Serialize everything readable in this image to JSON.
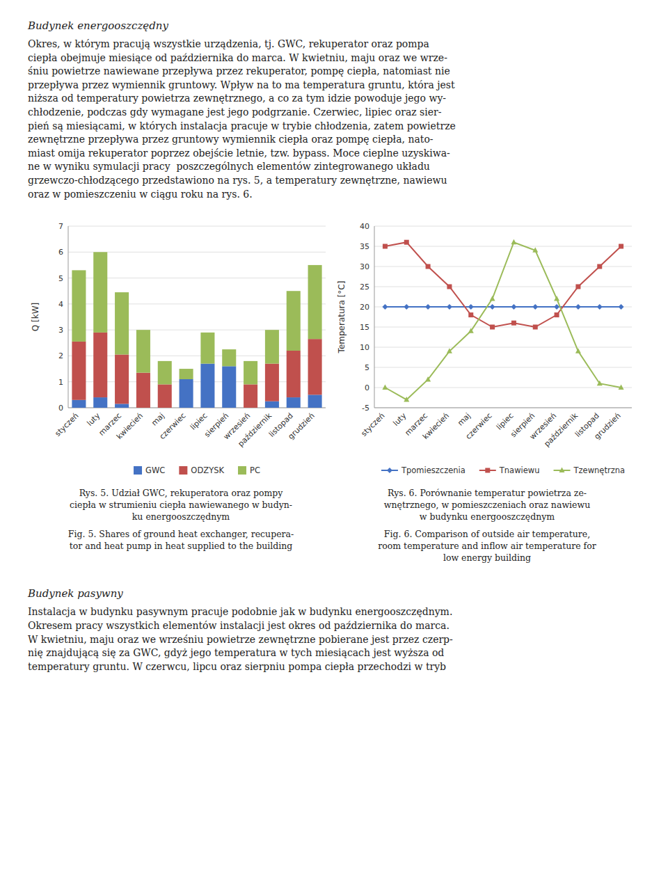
{
  "page_text": {
    "title_text": "Budynek energooszczędny",
    "paragraph1": "Okres, w którym pracują wszystkie urządzenia, tj. GWC, rekuperator oraz pompa\nciepła obejmuje miesiące od października do marca. W kwietniu, maju oraz we wrze-\nśniu powietrze nawiewane przepływa przez rekuperator, pompę ciepła, natomiast nie\nprzepływa przez wymiennik gruntowy. Wpływ na to ma temperatura gruntu, która jest\nniższa od temperatury powietrza zewnętrznego, a co za tym idzie powoduje jego wy-\nchłodzenie, podczas gdy wymagane jest jego podgrzanie. Czerwiec, lipiec oraz sier-\npień są miesiącami, w których instalacja pracuje w trybie chłodzenia, zatem powietrze\nzewnętrzne przepływa przez gruntowy wymiennik ciepła oraz pompę ciepła, nato-\nmiast omija rekuperator poprzez obejście letnie, tzw. bypass. Moce cieplne uzyskiwa-\nne w wyniku symulacji pracy  poszczególnych elementów zintegrowanego układu\ngrzewczo-chłodzącego przedstawiono na rys. 5, a temperatury zewnętrzne, nawiewu\noraz w pomieszczeniu w ciągu roku na rys. 6.",
    "title2_text": "Budynek pasywny",
    "paragraph2": "Instalacja w budynku pasywnym pracuje podobnie jak w budynku energooszczędnym.\nOkresem pracy wszystkich elementów instalacji jest okres od października do marca.\nW kwietniu, maju oraz we wrześniu powietrze zewnętrzne pobierane jest przez czerp-\nnię znajdującą się za GWC, gdyż jego temperatura w tych miesiącach jest wyższa od\ntemperatury gruntu. W czerwcu, lipcu oraz sierpniu pompa ciepła przechodzi w tryb"
  },
  "chart_data": [
    {
      "type": "bar",
      "stacked": true,
      "grid": true,
      "legend": "bottom",
      "ylabel": "Q [kW]",
      "categories": [
        "styczeń",
        "luty",
        "marzec",
        "kwiecień",
        "maj",
        "czerwiec",
        "lipiec",
        "sierpień",
        "wrzesień",
        "październik",
        "listopad",
        "grudzień"
      ],
      "series": [
        {
          "name": "GWC",
          "color": "#4472c4",
          "values": [
            0.3,
            0.4,
            0.15,
            0.0,
            0.0,
            1.1,
            1.7,
            1.6,
            0.0,
            0.25,
            0.4,
            0.5
          ]
        },
        {
          "name": "ODZYSK",
          "color": "#c0504d",
          "values": [
            2.25,
            2.5,
            1.9,
            1.35,
            0.9,
            0.0,
            0.0,
            0.0,
            0.9,
            1.45,
            1.8,
            2.15
          ]
        },
        {
          "name": "PC",
          "color": "#9bbb59",
          "values": [
            2.75,
            3.1,
            2.4,
            1.65,
            0.9,
            0.4,
            1.2,
            0.65,
            0.9,
            1.3,
            2.3,
            2.85
          ]
        }
      ],
      "ylim": [
        0,
        7
      ],
      "yticks": [
        0,
        1,
        2,
        3,
        4,
        5,
        6,
        7
      ],
      "caption": [
        "Rys. 5. Udział GWC, rekuperatora oraz pompy\nciepła w strumieniu ciepła nawiewanego w budyn-\nku energooszczędnym",
        "Fig. 5. Shares of ground heat exchanger, recupera-\ntor and heat pump in heat supplied to the building"
      ]
    },
    {
      "type": "line",
      "grid": true,
      "legend": "bottom",
      "ylabel": "Temperatura [°C]",
      "categories": [
        "styczeń",
        "luty",
        "marzec",
        "kwiecień",
        "maj",
        "czerwiec",
        "lipiec",
        "sierpień",
        "wrzesień",
        "październik",
        "listopad",
        "grudzień"
      ],
      "series": [
        {
          "name": "Tpomieszczenia",
          "color": "#4472c4",
          "marker": "diamond",
          "values": [
            20,
            20,
            20,
            20,
            20,
            20,
            20,
            20,
            20,
            20,
            20,
            20
          ]
        },
        {
          "name": "Tnawiewu",
          "color": "#c0504d",
          "marker": "square",
          "values": [
            35,
            36,
            30,
            25,
            18,
            15,
            16,
            15,
            18,
            25,
            30,
            35
          ]
        },
        {
          "name": "Tzewnętrzna",
          "color": "#9bbb59",
          "marker": "triangle",
          "values": [
            0,
            -3,
            2,
            9,
            14,
            22,
            36,
            34,
            22,
            9,
            1,
            0
          ]
        }
      ],
      "ylim": [
        -5,
        40
      ],
      "yticks": [
        -5,
        0,
        5,
        10,
        15,
        20,
        25,
        30,
        35,
        40
      ],
      "caption": [
        "Rys. 6. Porównanie temperatur powietrza ze-\nwnętrznego, w pomieszczeniach oraz nawiewu\nw budynku energooszczędnym",
        "Fig. 6. Comparison of outside air temperature,\nroom temperature and inflow air temperature for\nlow energy building"
      ]
    }
  ]
}
